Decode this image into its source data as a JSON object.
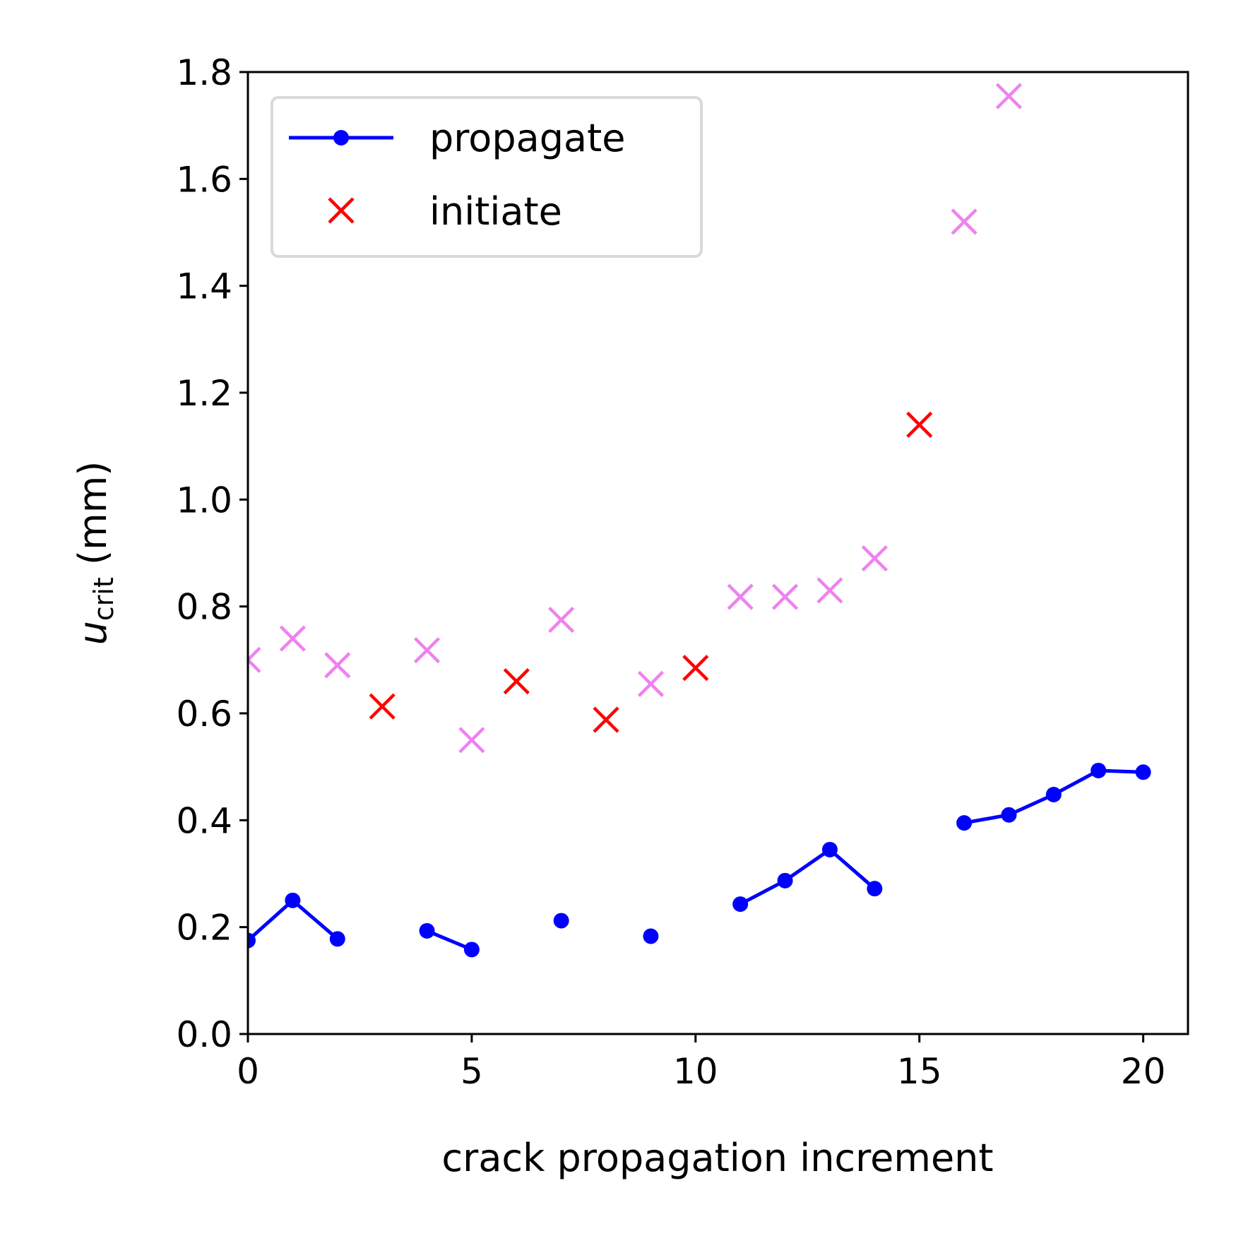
{
  "colors": {
    "propagate": "#0000ff",
    "initiate": "#ff0000",
    "initiate_light": "#ee82ee",
    "axes": "#000000",
    "legend_border": "#d9d9d9"
  },
  "chart_data": {
    "type": "scatter",
    "xlabel": "crack propagation increment",
    "ylabel": {
      "main": "u",
      "subscript": "crit",
      "unit": " (mm)"
    },
    "xlim": [
      0,
      21
    ],
    "ylim": [
      0,
      1.8
    ],
    "xticks": [
      0,
      5,
      10,
      15,
      20
    ],
    "xtick_labels": [
      "0",
      "5",
      "10",
      "15",
      "20"
    ],
    "yticks": [
      0,
      0.2,
      0.4,
      0.6,
      0.8,
      1.0,
      1.2,
      1.4,
      1.6,
      1.8
    ],
    "ytick_labels": [
      "0.0",
      "0.2",
      "0.4",
      "0.6",
      "0.8",
      "1.0",
      "1.2",
      "1.4",
      "1.6",
      "1.8"
    ],
    "grid": false,
    "legend_position": "upper-left",
    "legend": [
      {
        "label": "propagate",
        "marker": "line-dot",
        "color": "#0000ff"
      },
      {
        "label": "initiate",
        "marker": "x",
        "color": "#ff0000"
      }
    ],
    "series": [
      {
        "name": "propagate",
        "style": "line-dot",
        "color": "#0000ff",
        "segments": [
          [
            [
              0,
              0.175
            ],
            [
              1,
              0.25
            ],
            [
              2,
              0.178
            ]
          ],
          [
            [
              4,
              0.193
            ],
            [
              5,
              0.158
            ]
          ],
          [
            [
              7,
              0.212
            ]
          ],
          [
            [
              9,
              0.183
            ]
          ],
          [
            [
              11,
              0.243
            ],
            [
              12,
              0.287
            ],
            [
              13,
              0.345
            ],
            [
              14,
              0.272
            ]
          ],
          [
            [
              16,
              0.395
            ],
            [
              17,
              0.41
            ],
            [
              18,
              0.448
            ],
            [
              19,
              0.493
            ],
            [
              20,
              0.49
            ]
          ]
        ]
      },
      {
        "name": "initiate",
        "style": "x",
        "color": "#ff0000",
        "points": [
          [
            3,
            0.613
          ],
          [
            6,
            0.66
          ],
          [
            8,
            0.588
          ],
          [
            10,
            0.685
          ],
          [
            15,
            1.14
          ]
        ]
      },
      {
        "style": "x",
        "color": "#ee82ee",
        "points": [
          [
            0,
            0.7
          ],
          [
            1,
            0.74
          ],
          [
            2,
            0.69
          ],
          [
            4,
            0.718
          ],
          [
            5,
            0.55
          ],
          [
            7,
            0.775
          ],
          [
            9,
            0.655
          ],
          [
            11,
            0.818
          ],
          [
            12,
            0.818
          ],
          [
            13,
            0.83
          ],
          [
            14,
            0.89
          ],
          [
            16,
            1.52
          ],
          [
            17,
            1.755
          ]
        ]
      }
    ]
  }
}
